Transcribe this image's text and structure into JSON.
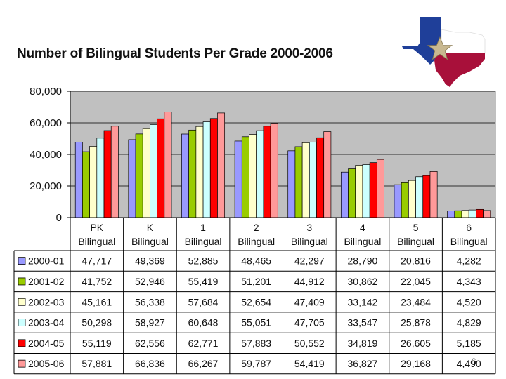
{
  "slide": {
    "title": "Number of Bilingual Students Per Grade 2000-2006",
    "page_number": "6"
  },
  "logo": {
    "name": "texas-flag-map-logo"
  },
  "colors": {
    "plot_bg": "#c0c0c0",
    "series": [
      "#9999ff",
      "#99cc00",
      "#ffffcc",
      "#ccffff",
      "#ff0000",
      "#ff9999"
    ]
  },
  "chart_data": {
    "type": "bar",
    "title": "Number of Bilingual Students Per Grade 2000-2006",
    "categories": [
      [
        "PK",
        "Bilingual"
      ],
      [
        "K",
        "Bilingual"
      ],
      [
        "1",
        "Bilingual"
      ],
      [
        "2",
        "Bilingual"
      ],
      [
        "3",
        "Bilingual"
      ],
      [
        "4",
        "Bilingual"
      ],
      [
        "5",
        "Bilingual"
      ],
      [
        "6",
        "Bilingual"
      ]
    ],
    "yticks": [
      "0",
      "20,000",
      "40,000",
      "60,000",
      "80,000"
    ],
    "ylim": [
      0,
      80000
    ],
    "grid": true,
    "legend": "data-table-left",
    "series": [
      {
        "name": "2000-01",
        "values": [
          47717,
          49369,
          52885,
          48465,
          42297,
          28790,
          20816,
          4282
        ],
        "labels": [
          "47,717",
          "49,369",
          "52,885",
          "48,465",
          "42,297",
          "28,790",
          "20,816",
          "4,282"
        ]
      },
      {
        "name": "2001-02",
        "values": [
          41752,
          52946,
          55419,
          51201,
          44912,
          30862,
          22045,
          4343
        ],
        "labels": [
          "41,752",
          "52,946",
          "55,419",
          "51,201",
          "44,912",
          "30,862",
          "22,045",
          "4,343"
        ]
      },
      {
        "name": "2002-03",
        "values": [
          45161,
          56338,
          57684,
          52654,
          47409,
          33142,
          23484,
          4520
        ],
        "labels": [
          "45,161",
          "56,338",
          "57,684",
          "52,654",
          "47,409",
          "33,142",
          "23,484",
          "4,520"
        ]
      },
      {
        "name": "2003-04",
        "values": [
          50298,
          58927,
          60648,
          55051,
          47705,
          33547,
          25878,
          4829
        ],
        "labels": [
          "50,298",
          "58,927",
          "60,648",
          "55,051",
          "47,705",
          "33,547",
          "25,878",
          "4,829"
        ]
      },
      {
        "name": "2004-05",
        "values": [
          55119,
          62556,
          62771,
          57883,
          50552,
          34819,
          26605,
          5185
        ],
        "labels": [
          "55,119",
          "62,556",
          "62,771",
          "57,883",
          "50,552",
          "34,819",
          "26,605",
          "5,185"
        ]
      },
      {
        "name": "2005-06",
        "values": [
          57881,
          66836,
          66267,
          59787,
          54419,
          36827,
          29168,
          4490
        ],
        "labels": [
          "57,881",
          "66,836",
          "66,267",
          "59,787",
          "54,419",
          "36,827",
          "29,168",
          "4,490"
        ]
      }
    ]
  }
}
